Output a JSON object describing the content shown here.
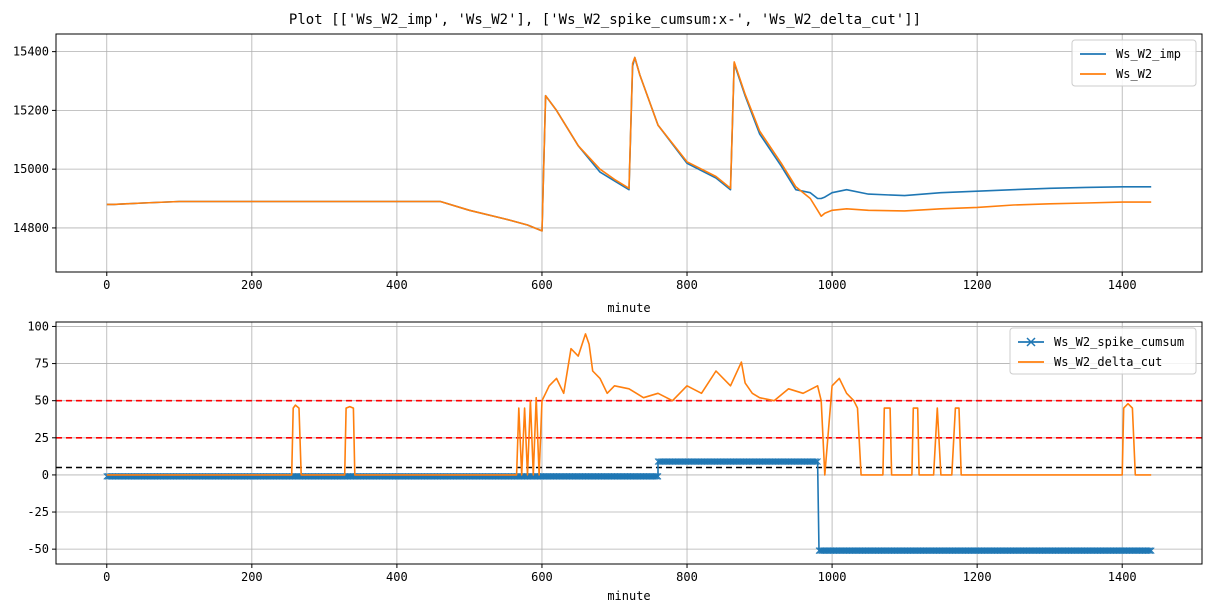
{
  "figure_title": "Plot [['Ws_W2_imp', 'Ws_W2'], ['Ws_W2_spike_cumsum:x-', 'Ws_W2_delta_cut']]",
  "colors": {
    "blue": "#1f77b4",
    "orange": "#ff7f0e",
    "red": "#ff0000",
    "black": "#000000",
    "grid": "#b0b0b0"
  },
  "chart_data": [
    {
      "type": "line",
      "xlabel": "minute",
      "ylabel": "",
      "xlim": [
        -70,
        1510
      ],
      "ylim": [
        14650,
        15460
      ],
      "xticks": [
        0,
        200,
        400,
        600,
        800,
        1000,
        1200,
        1400
      ],
      "yticks": [
        14800,
        15000,
        15200,
        15400
      ],
      "grid": true,
      "legend": "top-right",
      "series": [
        {
          "name": "Ws_W2_imp",
          "color": "#1f77b4",
          "x": [
            0,
            10,
            50,
            100,
            200,
            300,
            400,
            460,
            500,
            550,
            580,
            600,
            605,
            620,
            650,
            680,
            700,
            720,
            725,
            728,
            735,
            760,
            800,
            840,
            860,
            865,
            880,
            900,
            930,
            950,
            970,
            980,
            985,
            990,
            1000,
            1020,
            1050,
            1100,
            1150,
            1200,
            1250,
            1300,
            1350,
            1400,
            1440
          ],
          "y": [
            14880,
            14880,
            14885,
            14890,
            14890,
            14890,
            14890,
            14890,
            14860,
            14830,
            14810,
            14790,
            15250,
            15200,
            15080,
            14990,
            14960,
            14930,
            15350,
            15380,
            15320,
            15150,
            15020,
            14970,
            14930,
            15360,
            15250,
            15120,
            15010,
            14930,
            14920,
            14900,
            14900,
            14905,
            14920,
            14930,
            14915,
            14910,
            14920,
            14925,
            14930,
            14935,
            14938,
            14940,
            14940
          ]
        },
        {
          "name": "Ws_W2",
          "color": "#ff7f0e",
          "x": [
            0,
            10,
            50,
            100,
            200,
            300,
            400,
            460,
            500,
            550,
            580,
            600,
            605,
            620,
            650,
            680,
            700,
            720,
            725,
            728,
            735,
            760,
            800,
            840,
            860,
            865,
            880,
            900,
            930,
            950,
            970,
            980,
            985,
            990,
            1000,
            1020,
            1050,
            1100,
            1150,
            1200,
            1250,
            1300,
            1350,
            1400,
            1440
          ],
          "y": [
            14880,
            14880,
            14885,
            14890,
            14890,
            14890,
            14890,
            14890,
            14860,
            14830,
            14810,
            14790,
            15250,
            15200,
            15080,
            15000,
            14965,
            14935,
            15360,
            15380,
            15320,
            15150,
            15025,
            14975,
            14935,
            15365,
            15255,
            15130,
            15020,
            14940,
            14900,
            14860,
            14840,
            14850,
            14860,
            14865,
            14860,
            14858,
            14865,
            14870,
            14878,
            14882,
            14885,
            14888,
            14888
          ]
        }
      ]
    },
    {
      "type": "line",
      "xlabel": "minute",
      "ylabel": "",
      "xlim": [
        -70,
        1510
      ],
      "ylim": [
        -60,
        103
      ],
      "xticks": [
        0,
        200,
        400,
        600,
        800,
        1000,
        1200,
        1400
      ],
      "yticks": [
        -50,
        -25,
        0,
        25,
        50,
        75,
        100
      ],
      "grid": true,
      "legend": "top-right",
      "hlines": [
        {
          "y": 50,
          "color": "#ff0000",
          "style": "dashed"
        },
        {
          "y": 25,
          "color": "#ff0000",
          "style": "dashed"
        },
        {
          "y": 5,
          "color": "#000000",
          "style": "dashed"
        }
      ],
      "series": [
        {
          "name": "Ws_W2_spike_cumsum",
          "color": "#1f77b4",
          "marker": "x",
          "x": [
            0,
            760,
            760,
            980,
            982,
            1440
          ],
          "y": [
            -1,
            -1,
            9,
            9,
            -51,
            -51
          ]
        },
        {
          "name": "Ws_W2_delta_cut",
          "color": "#ff7f0e",
          "x": [
            0,
            255,
            257,
            260,
            265,
            268,
            328,
            330,
            335,
            340,
            342,
            565,
            568,
            572,
            576,
            580,
            584,
            588,
            592,
            596,
            600,
            605,
            610,
            620,
            630,
            640,
            650,
            660,
            665,
            670,
            680,
            690,
            700,
            720,
            740,
            760,
            780,
            800,
            820,
            840,
            860,
            875,
            880,
            890,
            900,
            920,
            940,
            960,
            980,
            985,
            990,
            1000,
            1010,
            1020,
            1030,
            1035,
            1040,
            1070,
            1072,
            1080,
            1082,
            1110,
            1112,
            1118,
            1120,
            1140,
            1145,
            1150,
            1165,
            1170,
            1175,
            1178,
            1180,
            1400,
            1402,
            1408,
            1414,
            1418,
            1440
          ],
          "y": [
            0,
            0,
            45,
            47,
            45,
            0,
            0,
            45,
            46,
            45,
            0,
            0,
            45,
            0,
            45,
            0,
            50,
            0,
            52,
            0,
            50,
            55,
            60,
            65,
            55,
            85,
            80,
            95,
            88,
            70,
            65,
            55,
            60,
            58,
            52,
            55,
            50,
            60,
            55,
            70,
            60,
            76,
            62,
            55,
            52,
            50,
            58,
            55,
            60,
            50,
            0,
            60,
            65,
            55,
            50,
            45,
            0,
            0,
            45,
            45,
            0,
            0,
            45,
            45,
            0,
            0,
            45,
            0,
            0,
            45,
            45,
            0,
            0,
            0,
            45,
            48,
            45,
            0,
            0
          ]
        }
      ]
    }
  ]
}
